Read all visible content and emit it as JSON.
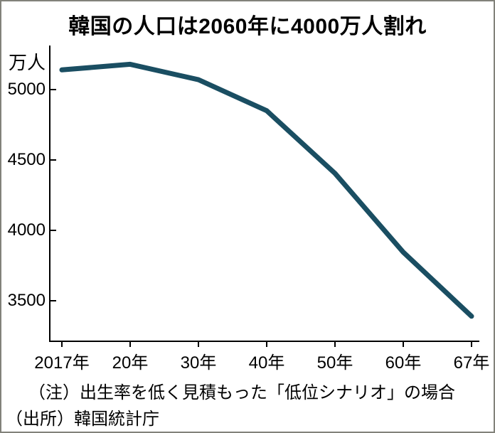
{
  "title": "韓国の人口は2060年に4000万人割れ",
  "y_axis": {
    "unit_label": "万人",
    "ticks": [
      "5000",
      "4500",
      "4000",
      "3500"
    ]
  },
  "x_axis": {
    "ticks": [
      "2017年",
      "20年",
      "30年",
      "40年",
      "50年",
      "60年",
      "67年"
    ]
  },
  "notes": {
    "note": "（注）出生率を低く見積もった「低位シナリオ」の場合",
    "source": "（出所）韓国統計庁"
  },
  "chart_data": {
    "type": "line",
    "title": "韓国の人口は2060年に4000万人割れ",
    "ylabel": "万人",
    "xlabel": "",
    "categories": [
      "2017年",
      "20年",
      "30年",
      "40年",
      "50年",
      "60年",
      "67年"
    ],
    "years": [
      2017,
      2020,
      2030,
      2040,
      2050,
      2060,
      2067
    ],
    "values": [
      5140,
      5180,
      5070,
      4850,
      4405,
      3845,
      3390
    ],
    "y_ticks": [
      5000,
      4500,
      4000,
      3500
    ],
    "ylim": [
      3210,
      5315
    ],
    "x_spacing": "equal",
    "grid": false,
    "line_color": "#1a4e62",
    "line_width": 7
  }
}
